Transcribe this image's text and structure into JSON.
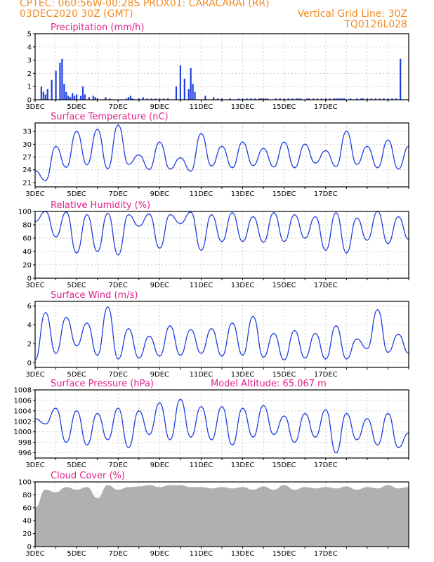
{
  "header": {
    "line1_left": "CPTEC:   060:56W-00:28S   PROX01: CARACARAI (RR)",
    "line2_left": "03DEC2020 30Z (GMT)",
    "line2_right": "Vertical Grid Line: 30Z",
    "line3_right": "TQ0126L028"
  },
  "colors": {
    "header": "#f08c28",
    "title": "#e0208a",
    "series": "#1f3fe0",
    "cloud": "#b0b0b0",
    "frame": "#000000"
  },
  "x_tick_labels": [
    "3DEC",
    "5DEC",
    "7DEC",
    "9DEC",
    "11DEC",
    "13DEC",
    "15DEC",
    "17DEC"
  ],
  "chart_data": [
    {
      "type": "bar",
      "title": "Precipitation (mm/h)",
      "ylim": [
        0,
        5
      ],
      "yticks": [
        0,
        1,
        2,
        3,
        4,
        5
      ],
      "x": [
        0.3,
        0.4,
        0.5,
        0.6,
        0.8,
        1.0,
        1.2,
        1.3,
        1.4,
        1.5,
        1.6,
        1.7,
        1.8,
        1.9,
        2.0,
        2.2,
        2.3,
        2.4,
        2.6,
        2.8,
        2.9,
        3.0,
        3.4,
        3.6,
        4.4,
        4.5,
        4.6,
        4.7,
        5.0,
        5.2,
        5.4,
        5.6,
        5.8,
        6.0,
        6.2,
        6.4,
        6.8,
        7.0,
        7.2,
        7.4,
        7.5,
        7.6,
        7.7,
        8.2,
        8.6,
        8.8,
        9.0,
        9.4,
        9.8,
        10.0,
        10.2,
        10.4,
        10.6,
        10.8,
        10.9,
        11.0,
        11.1,
        11.2,
        11.6,
        11.8,
        12.0,
        12.2,
        12.4,
        12.6,
        12.7,
        12.8,
        13.1,
        13.2,
        13.4,
        13.6,
        13.8,
        14.0,
        14.2,
        14.4,
        14.5,
        14.6,
        14.7,
        14.8,
        14.9,
        15.2,
        15.5,
        15.7,
        15.8,
        16.0,
        16.2,
        16.4,
        16.6,
        16.8,
        17.0,
        17.2,
        17.4,
        17.6
      ],
      "values": [
        1.0,
        0.6,
        0.4,
        0.8,
        1.5,
        2.2,
        2.8,
        3.1,
        1.2,
        0.6,
        0.3,
        0.2,
        0.5,
        0.3,
        0.4,
        0.3,
        1.0,
        0.4,
        0.2,
        0.3,
        0.2,
        0.1,
        0.2,
        0.1,
        0.1,
        0.2,
        0.3,
        0.1,
        0.1,
        0.2,
        0.1,
        0.1,
        0.1,
        0.1,
        0.1,
        0.1,
        1.0,
        2.6,
        1.6,
        0.8,
        2.4,
        1.2,
        0.6,
        0.3,
        0.2,
        0.1,
        0.1,
        0.1,
        0.1,
        0.1,
        0.1,
        0.1,
        0.1,
        0.1,
        0.1,
        0.1,
        0.1,
        0.1,
        0.1,
        0.1,
        0.1,
        0.1,
        0.1,
        0.1,
        0.1,
        0.1,
        0.1,
        0.1,
        0.1,
        0.1,
        0.1,
        0.1,
        0.1,
        0.1,
        0.1,
        0.1,
        0.1,
        0.1,
        0.1,
        0.1,
        0.1,
        0.1,
        0.1,
        0.1,
        0.1,
        0.1,
        0.1,
        0.1,
        0.1,
        0.1,
        0.1,
        3.1
      ]
    },
    {
      "type": "line",
      "title": "Surface Temperature (nC)",
      "ylim": [
        20,
        35
      ],
      "yticks": [
        21,
        24,
        27,
        30,
        33
      ],
      "x": [
        0,
        0.5,
        1.0,
        1.5,
        2.0,
        2.5,
        3.0,
        3.5,
        4.0,
        4.5,
        5.0,
        5.5,
        6.0,
        6.5,
        7.0,
        7.5,
        8.0,
        8.5,
        9.0,
        9.5,
        10.0,
        10.5,
        11.0,
        11.5,
        12.0,
        12.5,
        13.0,
        13.5,
        14.0,
        14.5,
        15.0,
        15.5,
        16.0,
        16.5,
        17.0,
        17.5,
        18.0
      ],
      "values": [
        23.8,
        21.5,
        29.5,
        24.6,
        33.0,
        25.2,
        33.5,
        24.3,
        34.5,
        25.3,
        27.5,
        24.1,
        30.5,
        24.2,
        26.8,
        23.7,
        32.5,
        24.9,
        29.5,
        24.5,
        30.5,
        25.0,
        29.0,
        24.7,
        30.5,
        24.5,
        30.0,
        25.6,
        28.5,
        24.8,
        33.0,
        25.3,
        29.5,
        24.5,
        31.0,
        24.2,
        29.5
      ]
    },
    {
      "type": "line",
      "title": "Relative Humidity (%)",
      "ylim": [
        0,
        100
      ],
      "yticks": [
        0,
        20,
        40,
        60,
        80,
        100
      ],
      "x": [
        0,
        0.5,
        1.0,
        1.5,
        2.0,
        2.5,
        3.0,
        3.5,
        4.0,
        4.5,
        5.0,
        5.5,
        6.0,
        6.5,
        7.0,
        7.5,
        8.0,
        8.5,
        9.0,
        9.5,
        10.0,
        10.5,
        11.0,
        11.5,
        12.0,
        12.5,
        13.0,
        13.5,
        14.0,
        14.5,
        15.0,
        15.5,
        16.0,
        16.5,
        17.0,
        17.5,
        18.0
      ],
      "values": [
        85,
        100,
        62,
        99,
        38,
        95,
        40,
        97,
        35,
        95,
        78,
        96,
        45,
        95,
        82,
        99,
        42,
        95,
        55,
        98,
        55,
        92,
        54,
        98,
        55,
        95,
        60,
        92,
        42,
        98,
        38,
        90,
        57,
        100,
        52,
        92,
        58
      ]
    },
    {
      "type": "line",
      "title": "Surface Wind (m/s)",
      "ylim": [
        -0.5,
        6.5
      ],
      "yticks": [
        0,
        2,
        4,
        6
      ],
      "x": [
        0,
        0.5,
        1.0,
        1.5,
        2.0,
        2.5,
        3.0,
        3.5,
        4.0,
        4.5,
        5.0,
        5.5,
        6.0,
        6.5,
        7.0,
        7.5,
        8.0,
        8.5,
        9.0,
        9.5,
        10.0,
        10.5,
        11.0,
        11.5,
        12.0,
        12.5,
        13.0,
        13.5,
        14.0,
        14.5,
        15.0,
        15.5,
        16.0,
        16.5,
        17.0,
        17.5,
        18.0
      ],
      "values": [
        0.3,
        5.3,
        1.0,
        4.8,
        1.8,
        4.2,
        0.8,
        5.9,
        0.4,
        3.6,
        0.5,
        2.8,
        0.7,
        3.9,
        0.8,
        3.5,
        1.0,
        3.6,
        0.7,
        4.2,
        0.8,
        4.9,
        0.6,
        3.1,
        0.3,
        3.4,
        0.5,
        3.1,
        0.4,
        3.9,
        0.4,
        2.5,
        1.5,
        5.6,
        1.1,
        3.0,
        1.0
      ]
    },
    {
      "type": "line",
      "title": "Surface Pressure (hPa)",
      "annotation": "Model Altitude: 65.067 m",
      "ylim": [
        995,
        1008
      ],
      "yticks": [
        996,
        998,
        1000,
        1002,
        1004,
        1006,
        1008
      ],
      "x": [
        0,
        0.5,
        1.0,
        1.5,
        2.0,
        2.5,
        3.0,
        3.5,
        4.0,
        4.5,
        5.0,
        5.5,
        6.0,
        6.5,
        7.0,
        7.5,
        8.0,
        8.5,
        9.0,
        9.5,
        10.0,
        10.5,
        11.0,
        11.5,
        12.0,
        12.5,
        13.0,
        13.5,
        14.0,
        14.5,
        15.0,
        15.5,
        16.0,
        16.5,
        17.0,
        17.5,
        18.0
      ],
      "values": [
        1002.5,
        1001.5,
        1004.5,
        998.0,
        1004.0,
        997.5,
        1003.5,
        998.5,
        1004.5,
        997.0,
        1004.0,
        999.5,
        1005.5,
        998.5,
        1006.2,
        999.0,
        1004.8,
        998.5,
        1004.8,
        997.5,
        1004.5,
        999.0,
        1005.0,
        999.5,
        1003.0,
        998.0,
        1003.5,
        999.0,
        1004.2,
        996.0,
        1003.5,
        998.5,
        1002.5,
        997.5,
        1003.5,
        997.0,
        999.8
      ]
    },
    {
      "type": "area",
      "title": "Cloud Cover (%)",
      "ylim": [
        0,
        100
      ],
      "yticks": [
        0,
        20,
        40,
        60,
        80,
        100
      ],
      "x": [
        0,
        0.5,
        1.0,
        1.5,
        2.0,
        2.5,
        3.0,
        3.5,
        4.0,
        4.5,
        5.0,
        5.5,
        6.0,
        6.5,
        7.0,
        7.5,
        8.0,
        8.5,
        9.0,
        9.5,
        10.0,
        10.5,
        11.0,
        11.5,
        12.0,
        12.5,
        13.0,
        13.5,
        14.0,
        14.5,
        15.0,
        15.5,
        16.0,
        16.5,
        17.0,
        17.5,
        18.0
      ],
      "values": [
        60,
        88,
        84,
        92,
        88,
        92,
        75,
        95,
        88,
        92,
        93,
        95,
        92,
        95,
        95,
        92,
        92,
        90,
        92,
        90,
        92,
        88,
        93,
        88,
        95,
        88,
        92,
        90,
        92,
        90,
        93,
        88,
        92,
        90,
        95,
        90,
        92
      ]
    }
  ]
}
